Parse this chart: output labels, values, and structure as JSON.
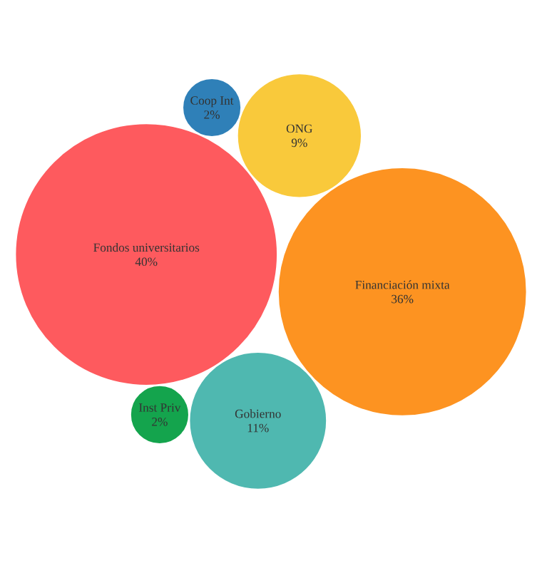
{
  "chart_data": {
    "type": "other",
    "categories": [
      "ONG",
      "Inst Priv",
      "Gobierno",
      "Coop Int",
      "Financiación mixta",
      "Fondos universitarios"
    ],
    "values": [
      9,
      2,
      11,
      2,
      36,
      40
    ],
    "value_labels": [
      "9%",
      "2%",
      "11%",
      "2%",
      "36%",
      "40%"
    ],
    "colors": [
      "#f9c93b",
      "#14a44d",
      "#4fb8b0",
      "#2f80b8",
      "#fd9321",
      "#fe5a5e"
    ]
  }
}
